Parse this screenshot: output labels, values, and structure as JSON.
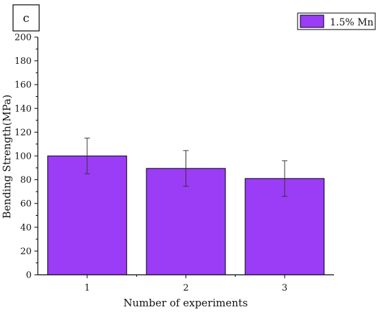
{
  "panel_label": "c",
  "chart_data": {
    "type": "bar",
    "categories": [
      "1",
      "2",
      "3"
    ],
    "series": [
      {
        "name": "1.5% Mn",
        "values": [
          100,
          89.5,
          81
        ],
        "error": [
          15,
          15,
          15
        ]
      }
    ],
    "xlabel": "Number of experiments",
    "ylabel": "Bending Strength(MPa)",
    "ylim": [
      0,
      200
    ],
    "yticks": [
      0,
      20,
      40,
      60,
      80,
      100,
      120,
      140,
      160,
      180,
      200
    ],
    "grid": false,
    "legend_position": "top-right",
    "colors": {
      "bar_fill": "#9b3cf6",
      "bar_stroke": "#000000",
      "error_bar": "#333333",
      "axis": "#000000"
    }
  }
}
